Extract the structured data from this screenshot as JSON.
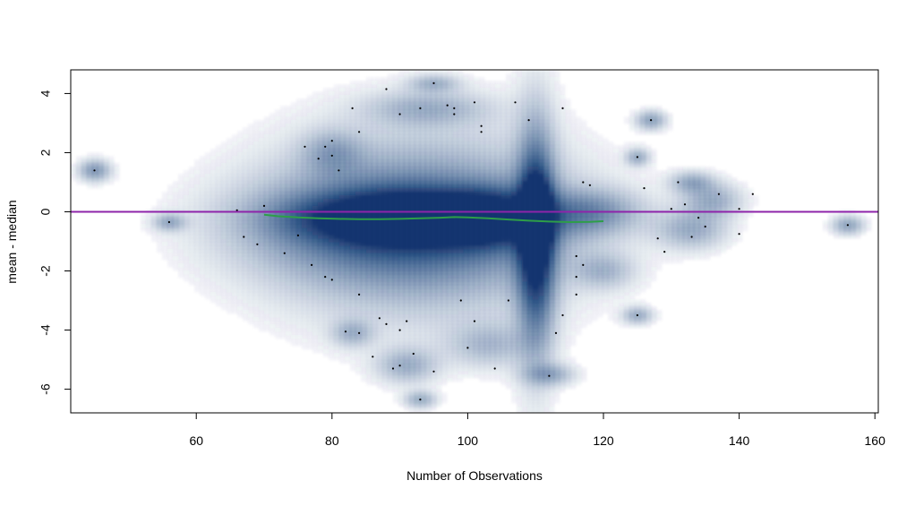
{
  "chart_data": {
    "type": "scatter",
    "subtype": "smoothScatter",
    "title": "",
    "xlabel": "Number of Observations",
    "ylabel": "mean - median",
    "xlim": [
      41.5,
      160.5
    ],
    "ylim": [
      -6.8,
      4.8
    ],
    "xticks": [
      60,
      80,
      100,
      120,
      140,
      160
    ],
    "yticks": [
      -6,
      -4,
      -2,
      0,
      2,
      4
    ],
    "grid": false,
    "density_color": "#08306b",
    "density_blobs": [
      {
        "x": 92,
        "y": -0.2,
        "sx": 11,
        "sy": 0.55,
        "w": 0.95
      },
      {
        "x": 90,
        "y": -0.5,
        "sx": 14,
        "sy": 1.2,
        "w": 0.55
      },
      {
        "x": 93,
        "y": -0.4,
        "sx": 15,
        "sy": 2.2,
        "w": 0.35
      },
      {
        "x": 110,
        "y": -0.2,
        "sx": 1.3,
        "sy": 0.7,
        "w": 0.95
      },
      {
        "x": 110,
        "y": -0.8,
        "sx": 1.6,
        "sy": 1.9,
        "w": 0.75
      },
      {
        "x": 110,
        "y": -1.0,
        "sx": 2.2,
        "sy": 3.0,
        "w": 0.35
      },
      {
        "x": 103,
        "y": -0.2,
        "sx": 4,
        "sy": 0.6,
        "w": 0.5
      },
      {
        "x": 118,
        "y": 0.0,
        "sx": 5,
        "sy": 0.5,
        "w": 0.35
      },
      {
        "x": 95,
        "y": 4.35,
        "sx": 2.5,
        "sy": 0.2,
        "w": 0.25
      },
      {
        "x": 94,
        "y": 3.5,
        "sx": 6,
        "sy": 0.4,
        "w": 0.25
      },
      {
        "x": 80,
        "y": 2.0,
        "sx": 3,
        "sy": 0.5,
        "w": 0.25
      },
      {
        "x": 45,
        "y": 1.4,
        "sx": 1.6,
        "sy": 0.25,
        "w": 0.4
      },
      {
        "x": 56,
        "y": -0.35,
        "sx": 1.6,
        "sy": 0.2,
        "w": 0.3
      },
      {
        "x": 127,
        "y": 3.1,
        "sx": 1.5,
        "sy": 0.22,
        "w": 0.35
      },
      {
        "x": 125,
        "y": 1.85,
        "sx": 1.2,
        "sy": 0.2,
        "w": 0.3
      },
      {
        "x": 133,
        "y": 1.0,
        "sx": 2.2,
        "sy": 0.25,
        "w": 0.3
      },
      {
        "x": 136,
        "y": 0.4,
        "sx": 3,
        "sy": 0.4,
        "w": 0.3
      },
      {
        "x": 133,
        "y": -0.6,
        "sx": 3.5,
        "sy": 0.45,
        "w": 0.3
      },
      {
        "x": 156,
        "y": -0.45,
        "sx": 1.6,
        "sy": 0.22,
        "w": 0.35
      },
      {
        "x": 125,
        "y": -3.5,
        "sx": 1.5,
        "sy": 0.2,
        "w": 0.3
      },
      {
        "x": 93,
        "y": -6.35,
        "sx": 1.6,
        "sy": 0.2,
        "w": 0.3
      },
      {
        "x": 91,
        "y": -5.2,
        "sx": 3,
        "sy": 0.4,
        "w": 0.28
      },
      {
        "x": 112,
        "y": -5.5,
        "sx": 2.5,
        "sy": 0.25,
        "w": 0.3
      },
      {
        "x": 83,
        "y": -4.1,
        "sx": 2,
        "sy": 0.3,
        "w": 0.25
      },
      {
        "x": 120,
        "y": -2.0,
        "sx": 3,
        "sy": 0.4,
        "w": 0.22
      },
      {
        "x": 103,
        "y": -4.5,
        "sx": 4,
        "sy": 0.5,
        "w": 0.22
      }
    ],
    "points": [
      [
        45,
        1.4
      ],
      [
        56,
        -0.35
      ],
      [
        66,
        0.05
      ],
      [
        67,
        -0.85
      ],
      [
        69,
        -1.1
      ],
      [
        70,
        0.2
      ],
      [
        73,
        -1.4
      ],
      [
        75,
        -0.8
      ],
      [
        76,
        2.2
      ],
      [
        77,
        -1.8
      ],
      [
        78,
        1.8
      ],
      [
        79,
        2.2
      ],
      [
        79,
        -2.2
      ],
      [
        80,
        1.9
      ],
      [
        80,
        2.4
      ],
      [
        80,
        -2.3
      ],
      [
        81,
        1.4
      ],
      [
        82,
        -4.05
      ],
      [
        83,
        3.5
      ],
      [
        84,
        2.7
      ],
      [
        84,
        -2.8
      ],
      [
        84,
        -4.1
      ],
      [
        86,
        -4.9
      ],
      [
        87,
        -3.6
      ],
      [
        88,
        4.15
      ],
      [
        88,
        -3.8
      ],
      [
        89,
        -5.3
      ],
      [
        90,
        3.3
      ],
      [
        90,
        -4.0
      ],
      [
        90,
        -5.2
      ],
      [
        91,
        -3.7
      ],
      [
        92,
        -4.8
      ],
      [
        93,
        3.5
      ],
      [
        93,
        -6.35
      ],
      [
        95,
        4.35
      ],
      [
        95,
        -5.4
      ],
      [
        97,
        3.6
      ],
      [
        98,
        3.5
      ],
      [
        98,
        3.3
      ],
      [
        99,
        -3.0
      ],
      [
        100,
        -4.6
      ],
      [
        101,
        3.7
      ],
      [
        101,
        -3.7
      ],
      [
        102,
        2.9
      ],
      [
        102,
        2.7
      ],
      [
        104,
        -5.3
      ],
      [
        106,
        -3.0
      ],
      [
        107,
        3.7
      ],
      [
        109,
        3.1
      ],
      [
        112,
        -5.55
      ],
      [
        113,
        -4.1
      ],
      [
        114,
        3.5
      ],
      [
        114,
        -3.5
      ],
      [
        116,
        -1.5
      ],
      [
        116,
        -2.2
      ],
      [
        116,
        -2.8
      ],
      [
        117,
        1.0
      ],
      [
        117,
        -1.8
      ],
      [
        118,
        0.9
      ],
      [
        125,
        -3.5
      ],
      [
        125,
        1.85
      ],
      [
        126,
        0.8
      ],
      [
        127,
        3.1
      ],
      [
        128,
        -0.9
      ],
      [
        129,
        -1.35
      ],
      [
        130,
        0.1
      ],
      [
        131,
        1.0
      ],
      [
        132,
        0.25
      ],
      [
        133,
        -0.85
      ],
      [
        134,
        -0.2
      ],
      [
        135,
        -0.5
      ],
      [
        137,
        0.6
      ],
      [
        140,
        0.1
      ],
      [
        140,
        -0.75
      ],
      [
        142,
        0.6
      ],
      [
        156,
        -0.45
      ]
    ],
    "reference_line": {
      "y": 0,
      "color": "#8e24aa"
    },
    "smooth_line": {
      "color": "#2e9e48",
      "x": [
        70,
        72,
        75,
        78,
        81,
        84,
        87,
        90,
        93,
        96,
        98,
        100,
        103,
        106,
        109,
        112,
        115,
        118,
        120
      ],
      "y": [
        -0.1,
        -0.15,
        -0.19,
        -0.22,
        -0.24,
        -0.25,
        -0.25,
        -0.24,
        -0.22,
        -0.2,
        -0.18,
        -0.19,
        -0.22,
        -0.26,
        -0.3,
        -0.33,
        -0.35,
        -0.34,
        -0.32
      ]
    },
    "point_color": "#000000"
  }
}
